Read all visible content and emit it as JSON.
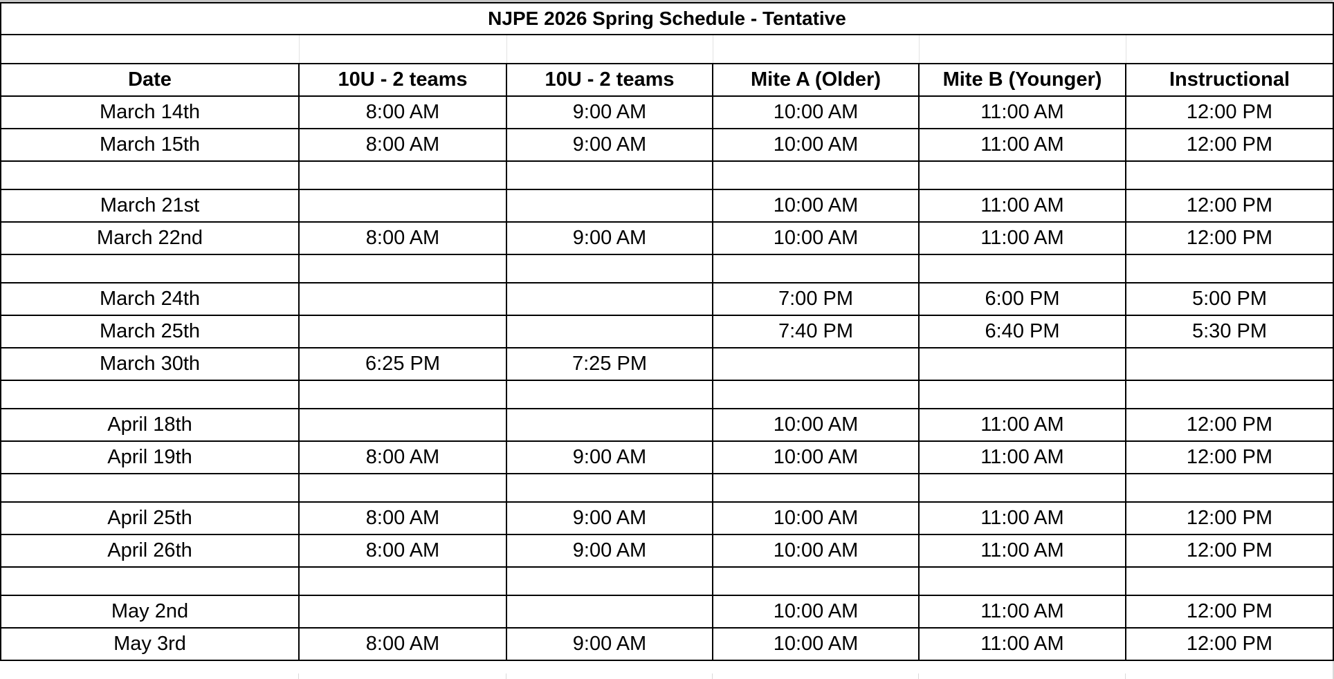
{
  "title": "NJPE 2026 Spring Schedule - Tentative",
  "headers": [
    "Date",
    "10U - 2 teams",
    "10U - 2 teams",
    "Mite A (Older)",
    "Mite B (Younger)",
    "Instructional"
  ],
  "rows": [
    [
      "March 14th",
      "8:00 AM",
      "9:00 AM",
      "10:00 AM",
      "11:00 AM",
      "12:00 PM"
    ],
    [
      "March 15th",
      "8:00 AM",
      "9:00 AM",
      "10:00 AM",
      "11:00 AM",
      "12:00 PM"
    ],
    [
      "",
      "",
      "",
      "",
      "",
      ""
    ],
    [
      "March 21st",
      "",
      "",
      "10:00 AM",
      "11:00 AM",
      "12:00 PM"
    ],
    [
      "March 22nd",
      "8:00 AM",
      "9:00 AM",
      "10:00 AM",
      "11:00 AM",
      "12:00 PM"
    ],
    [
      "",
      "",
      "",
      "",
      "",
      ""
    ],
    [
      "March 24th",
      "",
      "",
      "7:00 PM",
      "6:00 PM",
      "5:00 PM"
    ],
    [
      "March 25th",
      "",
      "",
      "7:40 PM",
      "6:40 PM",
      "5:30 PM"
    ],
    [
      "March 30th",
      "6:25 PM",
      "7:25 PM",
      "",
      "",
      ""
    ],
    [
      "",
      "",
      "",
      "",
      "",
      ""
    ],
    [
      "April 18th",
      "",
      "",
      "10:00 AM",
      "11:00 AM",
      "12:00 PM"
    ],
    [
      "April 19th",
      "8:00 AM",
      "9:00 AM",
      "10:00 AM",
      "11:00 AM",
      "12:00 PM"
    ],
    [
      "",
      "",
      "",
      "",
      "",
      ""
    ],
    [
      "April 25th",
      "8:00 AM",
      "9:00 AM",
      "10:00 AM",
      "11:00 AM",
      "12:00 PM"
    ],
    [
      "April 26th",
      "8:00 AM",
      "9:00 AM",
      "10:00 AM",
      "11:00 AM",
      "12:00 PM"
    ],
    [
      "",
      "",
      "",
      "",
      "",
      ""
    ],
    [
      "May 2nd",
      "",
      "",
      "10:00 AM",
      "11:00 AM",
      "12:00 PM"
    ],
    [
      "May 3rd",
      "8:00 AM",
      "9:00 AM",
      "10:00 AM",
      "11:00 AM",
      "12:00 PM"
    ]
  ]
}
